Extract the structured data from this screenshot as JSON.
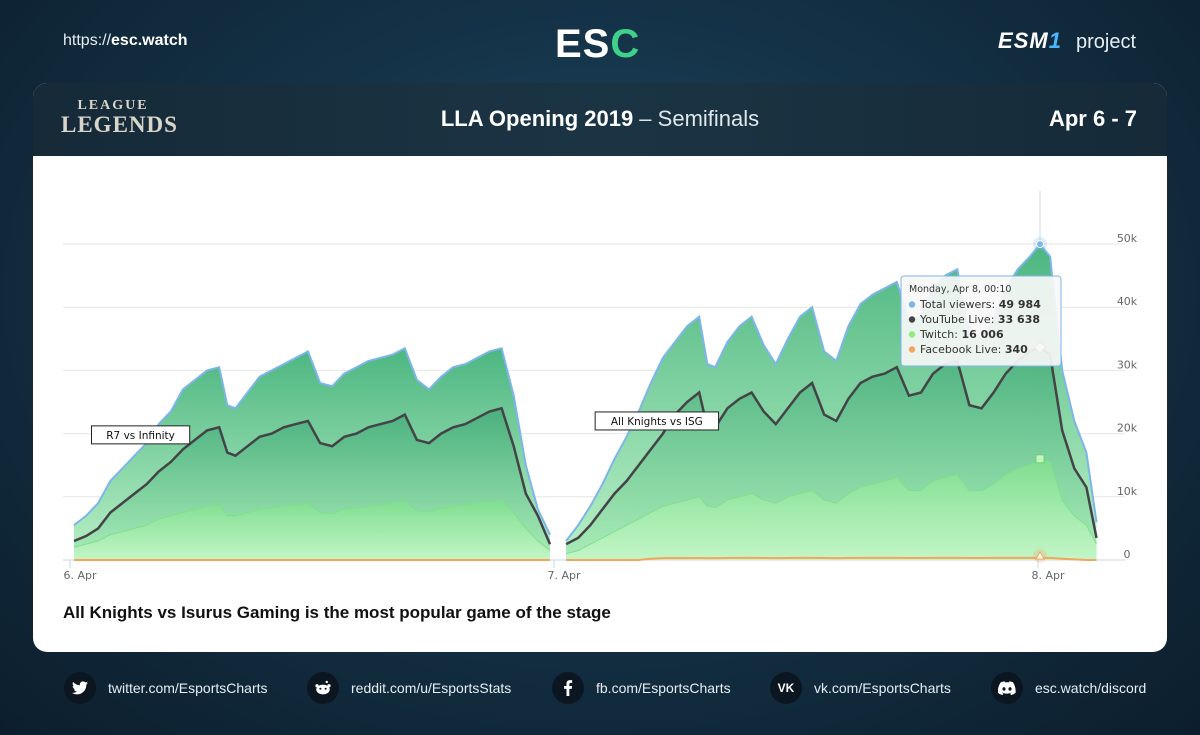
{
  "header": {
    "site_url_prefix": "https://",
    "site_url_domain": "esc.watch",
    "logo_text_main": "ES",
    "logo_text_accent": "C",
    "esm_logo_main": "ESM",
    "esm_logo_accent": "1",
    "esm_suffix": "project"
  },
  "card": {
    "game_logo_line1": "LEAGUE",
    "game_logo_line2": "LEGENDS",
    "title_main": "LLA Opening 2019",
    "title_separator": " – ",
    "title_sub": "Semifinals",
    "dates": "Apr 6 - 7",
    "caption": "All Knights vs Isurus Gaming is the most popular game of the stage"
  },
  "chart_data": {
    "type": "area",
    "title": "",
    "xlabel": "",
    "ylabel": "",
    "ylim": [
      0,
      50000
    ],
    "x_range_hours": [
      0,
      48.5
    ],
    "x_ticks": [
      {
        "t": 0,
        "label": "6. Apr"
      },
      {
        "t": 24,
        "label": "7. Apr"
      },
      {
        "t": 48,
        "label": "8. Apr"
      }
    ],
    "y_ticks": [
      {
        "v": 0,
        "label": "0"
      },
      {
        "v": 10000,
        "label": "10k"
      },
      {
        "v": 20000,
        "label": "20k"
      },
      {
        "v": 30000,
        "label": "30k"
      },
      {
        "v": 40000,
        "label": "40k"
      },
      {
        "v": 50000,
        "label": "50k"
      }
    ],
    "x": [
      0.2,
      0.8,
      1.4,
      2.0,
      2.6,
      3.2,
      3.8,
      4.4,
      5.0,
      5.6,
      6.2,
      6.8,
      7.4,
      7.8,
      8.2,
      8.8,
      9.4,
      10.0,
      10.6,
      11.2,
      11.8,
      12.4,
      13.0,
      13.6,
      14.2,
      14.8,
      15.4,
      16.0,
      16.6,
      17.2,
      17.8,
      18.4,
      19.0,
      19.6,
      20.2,
      20.8,
      21.4,
      22.0,
      22.6,
      23.2,
      23.8
    ],
    "x_game2": [
      24.6,
      25.2,
      25.8,
      26.4,
      27.0,
      27.6,
      28.2,
      28.8,
      29.4,
      30.0,
      30.6,
      31.2,
      31.6,
      32.0,
      32.6,
      33.2,
      33.8,
      34.4,
      35.0,
      35.6,
      36.2,
      36.8,
      37.4,
      38.0,
      38.6,
      39.2,
      39.8,
      40.4,
      41.0,
      41.6,
      42.2,
      42.8,
      43.4,
      44.0,
      44.6,
      45.2,
      45.8,
      46.4,
      47.0,
      47.6,
      48.1,
      48.6,
      49.2,
      49.8,
      50.4,
      50.9
    ],
    "series": [
      {
        "name": "Total viewers",
        "color": "#7cb5ec",
        "values_game1": [
          5500,
          7000,
          9000,
          12500,
          14500,
          16500,
          18500,
          21500,
          23500,
          27000,
          28500,
          30000,
          30500,
          24500,
          24000,
          26500,
          29000,
          30000,
          31000,
          32000,
          33000,
          28000,
          27500,
          29500,
          30500,
          31500,
          32000,
          32500,
          33500,
          28500,
          27000,
          29000,
          30500,
          31000,
          32000,
          33000,
          33500,
          26000,
          15000,
          8000,
          4000
        ],
        "values_game2": [
          3000,
          5500,
          8500,
          12000,
          16000,
          19500,
          23500,
          28000,
          32000,
          34500,
          37000,
          38500,
          31000,
          30500,
          34500,
          37000,
          38500,
          34000,
          31000,
          35000,
          38500,
          40000,
          33000,
          31500,
          37000,
          40500,
          42000,
          43000,
          44000,
          38000,
          38500,
          43000,
          45000,
          46000,
          35500,
          35000,
          38000,
          43000,
          46000,
          48000,
          49984,
          48000,
          30000,
          22000,
          17000,
          6000
        ]
      },
      {
        "name": "YouTube Live",
        "color": "#434348",
        "values_game1": [
          3000,
          3800,
          5000,
          7500,
          9000,
          10500,
          12000,
          14000,
          15500,
          17500,
          19000,
          20500,
          21000,
          17000,
          16500,
          18000,
          19500,
          20000,
          21000,
          21500,
          22000,
          18500,
          18000,
          19500,
          20000,
          21000,
          21500,
          22000,
          23000,
          19000,
          18500,
          20000,
          21000,
          21500,
          22500,
          23500,
          24000,
          18000,
          10500,
          7000,
          2500
        ],
        "values_game2": [
          2500,
          3500,
          5500,
          8000,
          10500,
          12500,
          15000,
          17500,
          20000,
          23000,
          25000,
          26500,
          21000,
          21000,
          24000,
          25500,
          26500,
          23500,
          21500,
          24000,
          26500,
          28000,
          23000,
          22000,
          25500,
          28000,
          29000,
          29500,
          30500,
          26000,
          26500,
          29500,
          31000,
          31500,
          24500,
          24000,
          26500,
          29500,
          31500,
          33000,
          33638,
          32500,
          20500,
          14500,
          11500,
          3500
        ]
      },
      {
        "name": "Twitch",
        "color": "#90ed7d",
        "values_game1": [
          2000,
          2500,
          3000,
          4000,
          4500,
          5000,
          5500,
          6500,
          7000,
          7500,
          8000,
          8500,
          8700,
          7000,
          7000,
          7500,
          8000,
          8200,
          8500,
          8700,
          9000,
          7500,
          7300,
          8000,
          8200,
          8500,
          8700,
          9000,
          9200,
          7800,
          7600,
          8200,
          8500,
          8800,
          9000,
          9200,
          9400,
          7500,
          5000,
          3000,
          1500
        ],
        "values_game2": [
          1000,
          1500,
          2500,
          3500,
          4500,
          5500,
          6500,
          7500,
          8500,
          9000,
          9500,
          10000,
          8500,
          8300,
          9500,
          10000,
          10500,
          9500,
          9000,
          10000,
          10500,
          11000,
          9500,
          9000,
          10500,
          11500,
          12000,
          12500,
          13000,
          11000,
          11000,
          12500,
          13000,
          13500,
          11000,
          11000,
          12000,
          13500,
          14500,
          15000,
          16006,
          15500,
          9500,
          7000,
          5500,
          2500
        ]
      },
      {
        "name": "Facebook Live",
        "color": "#f7a35c",
        "values_game1": [
          0,
          0,
          0,
          0,
          0,
          0,
          0,
          0,
          0,
          0,
          0,
          0,
          0,
          0,
          0,
          0,
          0,
          0,
          0,
          0,
          0,
          0,
          0,
          0,
          0,
          0,
          0,
          0,
          0,
          0,
          0,
          0,
          0,
          0,
          0,
          0,
          0,
          0,
          0,
          0,
          0
        ],
        "values_game2": [
          0,
          0,
          0,
          0,
          0,
          0,
          0,
          200,
          300,
          300,
          300,
          320,
          300,
          300,
          320,
          330,
          330,
          320,
          300,
          320,
          330,
          340,
          320,
          300,
          320,
          330,
          340,
          340,
          340,
          320,
          320,
          330,
          340,
          340,
          320,
          320,
          330,
          340,
          340,
          340,
          340,
          330,
          200,
          100,
          0,
          0
        ]
      }
    ],
    "annotations": [
      {
        "text": "R7 vs Infinity",
        "t": 3.5,
        "v": 19800
      },
      {
        "text": "All Knights vs ISG",
        "t": 29.1,
        "v": 22000
      }
    ],
    "tooltip": {
      "date": "Monday, Apr 8, 00:10",
      "t": 48.1,
      "rows": [
        {
          "label": "Total viewers: ",
          "value": "49 984",
          "color": "#7cb5ec"
        },
        {
          "label": "YouTube Live: ",
          "value": "33 638",
          "color": "#434348"
        },
        {
          "label": "Twitch: ",
          "value": "16 006",
          "color": "#90ed7d"
        },
        {
          "label": "Facebook Live: ",
          "value": "340",
          "color": "#f7a35c"
        }
      ]
    }
  },
  "footer": {
    "twitter_icon": "twitter-icon",
    "twitter": "twitter.com/EsportsCharts",
    "reddit_icon": "reddit-icon",
    "reddit": "reddit.com/u/EsportsStats",
    "facebook_icon": "facebook-icon",
    "facebook": "fb.com/EsportsCharts",
    "vk_icon": "vk-icon",
    "vk": "vk.com/EsportsCharts",
    "discord_icon": "discord-icon",
    "discord": "esc.watch/discord"
  }
}
